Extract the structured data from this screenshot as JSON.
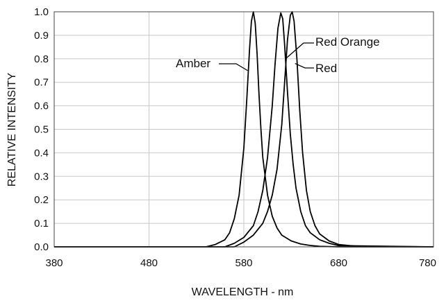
{
  "chart_data": {
    "type": "line",
    "xlabel": "WAVELENGTH - nm",
    "ylabel": "RELATIVE INTENSITY",
    "xlim": [
      380,
      780
    ],
    "ylim": [
      0,
      1.0
    ],
    "x_ticks": [
      380,
      480,
      580,
      680,
      780
    ],
    "y_ticks": [
      0.0,
      0.1,
      0.2,
      0.3,
      0.4,
      0.5,
      0.6,
      0.7,
      0.8,
      0.9,
      1.0
    ],
    "x_tick_labels": [
      "380",
      "480",
      "580",
      "680",
      "780"
    ],
    "y_tick_labels": [
      "0.0",
      "0.1",
      "0.2",
      "0.3",
      "0.4",
      "0.5",
      "0.6",
      "0.7",
      "0.8",
      "0.9",
      "1.0"
    ],
    "grid": true,
    "line_color": "#000000",
    "grid_color": "#c8c8c8",
    "series": [
      {
        "name": "Amber",
        "x": [
          380,
          540,
          550,
          560,
          565,
          570,
          575,
          580,
          583,
          586,
          588,
          590,
          592,
          594,
          596,
          598,
          600,
          605,
          610,
          615,
          620,
          630,
          640,
          650,
          660,
          680,
          780
        ],
        "y": [
          0.0,
          0.0,
          0.01,
          0.03,
          0.06,
          0.12,
          0.22,
          0.42,
          0.62,
          0.84,
          0.96,
          1.0,
          0.95,
          0.82,
          0.65,
          0.5,
          0.38,
          0.22,
          0.13,
          0.08,
          0.05,
          0.025,
          0.012,
          0.006,
          0.002,
          0.0,
          0.0
        ]
      },
      {
        "name": "Red Orange",
        "x": [
          380,
          560,
          570,
          580,
          590,
          595,
          600,
          605,
          610,
          613,
          616,
          619,
          621,
          623,
          626,
          629,
          632,
          635,
          640,
          645,
          650,
          660,
          670,
          680,
          780
        ],
        "y": [
          0.0,
          0.0,
          0.015,
          0.04,
          0.09,
          0.15,
          0.24,
          0.38,
          0.6,
          0.78,
          0.93,
          0.995,
          0.97,
          0.86,
          0.66,
          0.48,
          0.35,
          0.25,
          0.15,
          0.09,
          0.06,
          0.03,
          0.015,
          0.005,
          0.0
        ]
      },
      {
        "name": "Red",
        "x": [
          380,
          570,
          580,
          590,
          600,
          605,
          610,
          615,
          620,
          623,
          626,
          629,
          631,
          633,
          636,
          639,
          642,
          646,
          650,
          655,
          660,
          670,
          680,
          700,
          780
        ],
        "y": [
          0.0,
          0.0,
          0.02,
          0.05,
          0.1,
          0.15,
          0.22,
          0.33,
          0.52,
          0.7,
          0.88,
          0.985,
          1.0,
          0.96,
          0.8,
          0.58,
          0.4,
          0.24,
          0.15,
          0.09,
          0.055,
          0.025,
          0.01,
          0.002,
          0.0
        ]
      }
    ],
    "annotations": [
      "Amber",
      "Red Orange",
      "Red"
    ]
  }
}
